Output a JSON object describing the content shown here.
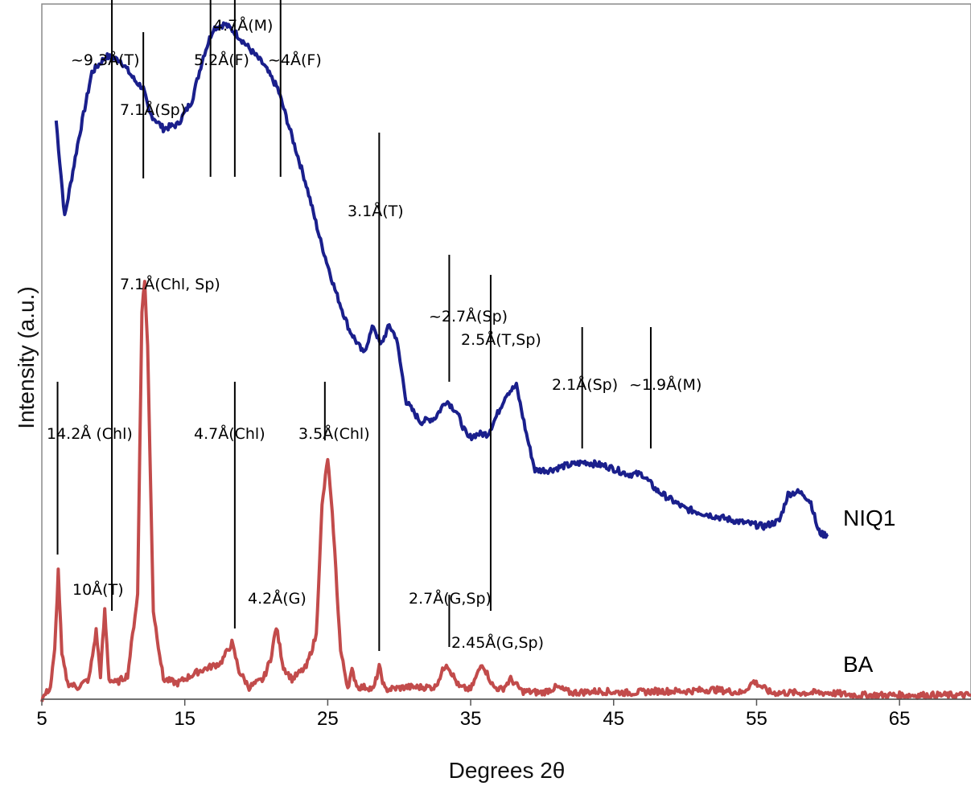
{
  "chart_data": {
    "type": "line",
    "title": "",
    "xlabel": "Degrees 2θ",
    "ylabel": "Intensity (a.u.)",
    "xlim": [
      5,
      70
    ],
    "x_ticks": [
      5,
      15,
      25,
      35,
      45,
      55,
      65
    ],
    "y_ticks_shown": false,
    "grid": false,
    "legend": "none (series labels placed at right end of each trace)",
    "series": [
      {
        "name": "NIQ1",
        "color": "#1a1f8c",
        "x": [
          6.0,
          6.6,
          7.5,
          8.5,
          9.5,
          10.5,
          11.5,
          12.1,
          12.5,
          13.5,
          14.5,
          15.5,
          16.3,
          17.0,
          17.8,
          18.5,
          19.5,
          20.5,
          21.5,
          22.5,
          23.5,
          24.5,
          25.5,
          26.5,
          27.5,
          28.2,
          28.7,
          29.3,
          29.8,
          30.5,
          31.5,
          32.5,
          33.3,
          34.0,
          34.8,
          35.5,
          36.2,
          36.8,
          37.5,
          38.2,
          38.9,
          39.5,
          40.5,
          41.5,
          43.0,
          44.5,
          46.0,
          47.0,
          48.0,
          50.0,
          52.0,
          54.0,
          55.5,
          56.6,
          57.2,
          57.8,
          58.3,
          58.8,
          59.3,
          59.6,
          60.0
        ],
        "y": [
          720,
          600,
          690,
          780,
          800,
          795,
          770,
          760,
          730,
          710,
          715,
          745,
          800,
          835,
          840,
          830,
          810,
          790,
          760,
          700,
          640,
          570,
          510,
          460,
          430,
          465,
          440,
          465,
          450,
          370,
          345,
          350,
          372,
          358,
          325,
          330,
          330,
          352,
          380,
          390,
          330,
          285,
          285,
          290,
          295,
          290,
          280,
          280,
          260,
          237,
          228,
          220,
          215,
          222,
          255,
          258,
          255,
          245,
          210,
          205,
          205
        ]
      },
      {
        "name": "BA",
        "color": "#c24b4b",
        "x": [
          5.0,
          5.6,
          5.9,
          6.15,
          6.4,
          6.8,
          7.5,
          8.3,
          8.8,
          9.1,
          9.4,
          9.7,
          10.2,
          11.0,
          11.7,
          12.0,
          12.2,
          12.4,
          12.8,
          13.5,
          14.5,
          16.0,
          17.5,
          18.3,
          18.8,
          19.5,
          20.5,
          21.0,
          21.4,
          21.9,
          22.5,
          23.5,
          24.2,
          24.6,
          25.0,
          25.4,
          25.9,
          26.4,
          26.7,
          27.1,
          27.8,
          28.2,
          28.6,
          29.0,
          30.5,
          32.5,
          33.3,
          34.2,
          35.0,
          35.8,
          36.6,
          37.2,
          37.8,
          38.6,
          40.0,
          41.0,
          42.0,
          44.0,
          46.0,
          48.0,
          50.0,
          52.0,
          54.0,
          54.8,
          56.0,
          58.0,
          60.0,
          62.0,
          64.0,
          66.0,
          68.0,
          70.0
        ],
        "y": [
          0,
          15,
          60,
          160,
          55,
          20,
          15,
          25,
          85,
          30,
          110,
          25,
          20,
          30,
          130,
          485,
          520,
          440,
          110,
          25,
          20,
          35,
          45,
          70,
          35,
          15,
          25,
          50,
          90,
          40,
          25,
          40,
          80,
          240,
          300,
          210,
          60,
          15,
          35,
          15,
          15,
          12,
          40,
          12,
          15,
          15,
          45,
          15,
          12,
          45,
          15,
          12,
          25,
          10,
          8,
          15,
          8,
          10,
          8,
          10,
          10,
          12,
          8,
          22,
          8,
          8,
          8,
          5,
          5,
          5,
          5,
          5
        ]
      }
    ],
    "annotations": [
      {
        "label": "~9.3Å(T)",
        "x": 9.9,
        "top": 890,
        "bottom": 110
      },
      {
        "label": "7.1Å(Sp)",
        "x": 12.1,
        "top": 830,
        "bottom": 648
      },
      {
        "label": "5.2Å(F)",
        "x": 16.8,
        "top": 880,
        "bottom": 650
      },
      {
        "label": "4.7Å(M)",
        "x": 18.5,
        "top": 925,
        "bottom": 650
      },
      {
        "label": "~4Å(F)",
        "x": 21.7,
        "top": 870,
        "bottom": 650
      },
      {
        "label": "3.1Å(T)",
        "x": 28.6,
        "top": 705,
        "bottom": 60
      },
      {
        "label": "~2.7Å(Sp)",
        "x": 33.5,
        "top": 553,
        "bottom": 395
      },
      {
        "label": "2.5Å(T,Sp)",
        "x": 36.4,
        "top": 528,
        "bottom": 110
      },
      {
        "label": "2.1Å(Sp)",
        "x": 42.8,
        "top": 463,
        "bottom": 312
      },
      {
        "label": "~1.9Å(M)",
        "x": 47.6,
        "top": 463,
        "bottom": 312
      },
      {
        "label": "7.1Å(Chl, Sp)",
        "x": 12.2,
        "top": null,
        "bottom": null
      },
      {
        "label": "14.2Å (Chl)",
        "x": 6.1,
        "top": 395,
        "bottom": 180
      },
      {
        "label": "4.7Å(Chl)",
        "x": 18.5,
        "top": 395,
        "bottom": 88
      },
      {
        "label": "3.5Å(Chl)",
        "x": 24.8,
        "top": 395,
        "bottom": 322
      },
      {
        "label": "10Å(T)",
        "x": 9.9,
        "top": null,
        "bottom": null
      },
      {
        "label": "4.2Å(G)",
        "x": 21.4,
        "top": null,
        "bottom": null
      },
      {
        "label": "2.7Å(G,Sp)",
        "x": 33.5,
        "top": 130,
        "bottom": 65
      },
      {
        "label": "2.45Å(G,Sp)",
        "x": 36.4,
        "top": null,
        "bottom": null
      }
    ]
  }
}
